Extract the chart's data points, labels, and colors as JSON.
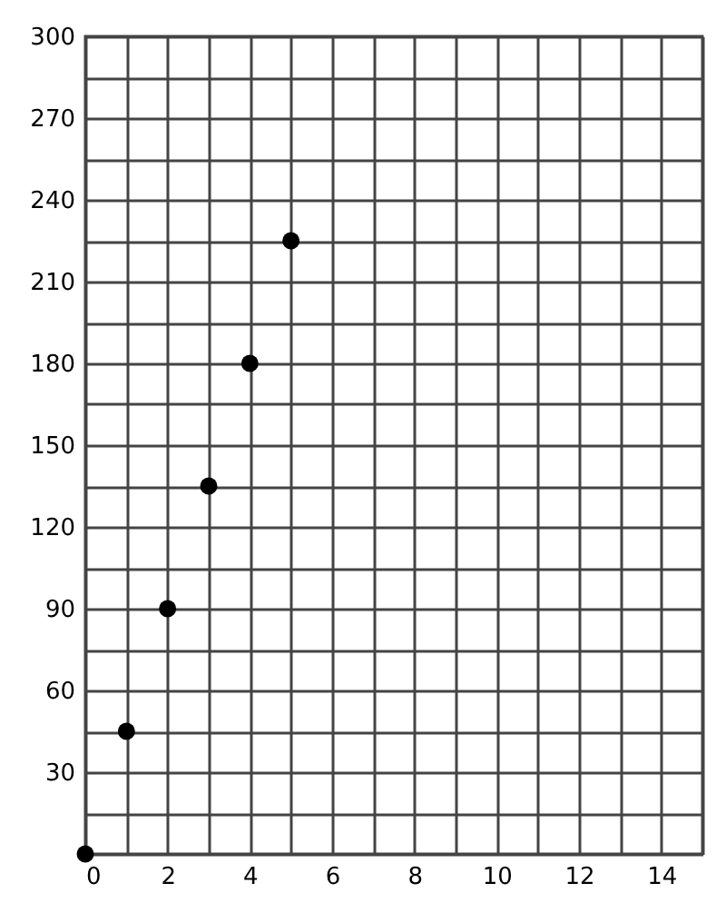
{
  "chart_data": {
    "type": "scatter",
    "marker": "circle",
    "grid": true,
    "x": [
      0,
      1,
      2,
      3,
      4,
      5
    ],
    "series": [
      {
        "color": "#000000",
        "values": [
          0,
          45,
          90,
          135,
          180,
          225
        ]
      }
    ],
    "xlim": [
      0,
      15
    ],
    "ylim": [
      0,
      300
    ],
    "xticks": [
      0,
      {
        "value": 1,
        "label": null
      },
      2,
      {
        "value": 3,
        "label": null
      },
      4,
      {
        "value": 5,
        "label": null
      },
      6,
      {
        "value": 7,
        "label": null
      },
      8,
      {
        "value": 9,
        "label": null
      },
      10,
      {
        "value": 11,
        "label": null
      },
      12,
      {
        "value": 13,
        "label": null
      },
      14,
      {
        "value": 15,
        "label": null
      }
    ],
    "yticks": [
      {
        "value": 0,
        "label": null
      },
      {
        "value": 15,
        "label": null
      },
      30,
      {
        "value": 45,
        "label": null
      },
      60,
      {
        "value": 75,
        "label": null
      },
      90,
      {
        "value": 105,
        "label": null
      },
      120,
      {
        "value": 135,
        "label": null
      },
      150,
      {
        "value": 165,
        "label": null
      },
      180,
      {
        "value": 195,
        "label": null
      },
      210,
      {
        "value": 225,
        "label": null
      },
      240,
      {
        "value": 255,
        "label": null
      },
      270,
      {
        "value": 285,
        "label": null
      },
      300
    ]
  }
}
